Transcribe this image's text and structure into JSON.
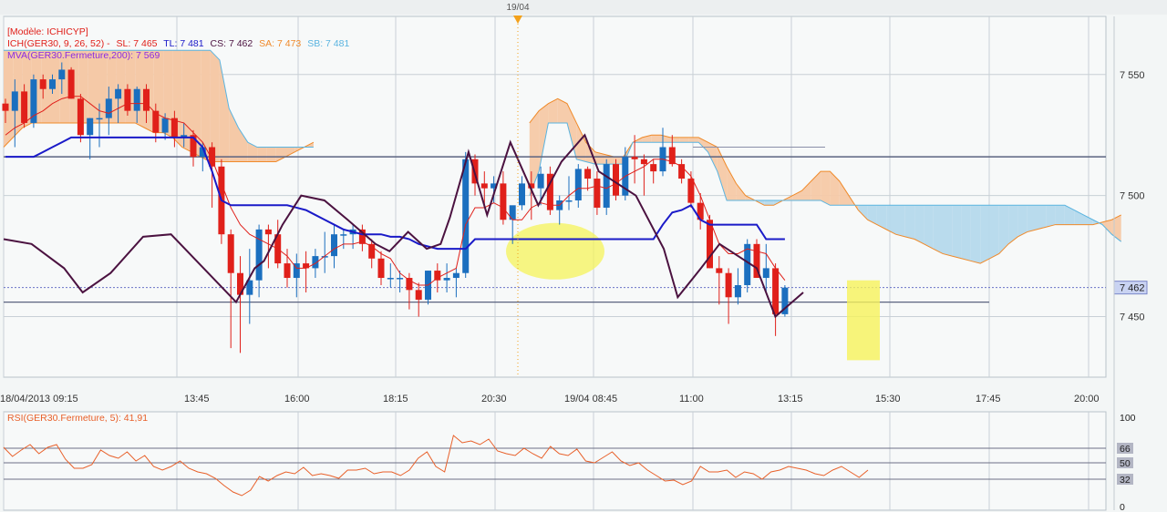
{
  "header": {
    "date_marker": "19/04"
  },
  "legend": {
    "model": "[Modèle: ICHICYP]",
    "ich_label": "ICH(GER30, 9, 26, 52) -",
    "sl": "SL: 7 465",
    "tl": "TL: 7 481",
    "cs": "CS: 7 462",
    "sa": "SA: 7 473",
    "sb": "SB: 7 481",
    "mva": "MVA(GER30.Fermeture,200): 7 569"
  },
  "rsi_legend": "RSI(GER30.Fermeture, 5): 41,91",
  "colors": {
    "bull": "#1b6fbf",
    "bear": "#e0201a",
    "tenkan": "#e0201a",
    "kijun": "#1a1ac8",
    "chikou": "#4b1240",
    "cloud_bull": "#f5c9a7",
    "cloud_bear": "#b5d9ec",
    "spanA": "#f08a2a",
    "spanB": "#5ab4e0",
    "rsi": "#e8602a",
    "grid": "#c8d0d6",
    "highlight": "#f6f35a",
    "price_tag": "#c9d3f2"
  },
  "chart_data": {
    "type": "candlestick",
    "title": "",
    "ylim": [
      7425,
      7574
    ],
    "y_ticks": [
      7450,
      7500,
      7550
    ],
    "y_tick_labels": [
      "7 450",
      "7 500",
      "7 550"
    ],
    "x_tick_labels": [
      "18/04/2013 09:15",
      "13:45",
      "16:00",
      "18:15",
      "20:30",
      "19/04 08:45",
      "11:00",
      "13:15",
      "15:30",
      "17:45",
      "20:00"
    ],
    "current_price": 7462,
    "current_price_label": "7 462",
    "candles": [
      [
        7538,
        7540,
        7530,
        7535
      ],
      [
        7535,
        7548,
        7520,
        7543
      ],
      [
        7543,
        7546,
        7528,
        7530
      ],
      [
        7530,
        7550,
        7528,
        7548
      ],
      [
        7548,
        7550,
        7540,
        7544
      ],
      [
        7544,
        7550,
        7542,
        7548
      ],
      [
        7548,
        7555,
        7542,
        7552
      ],
      [
        7552,
        7553,
        7540,
        7540
      ],
      [
        7540,
        7542,
        7522,
        7525
      ],
      [
        7525,
        7532,
        7515,
        7532
      ],
      [
        7532,
        7538,
        7520,
        7532
      ],
      [
        7532,
        7545,
        7525,
        7540
      ],
      [
        7540,
        7546,
        7530,
        7544
      ],
      [
        7544,
        7546,
        7533,
        7535
      ],
      [
        7535,
        7545,
        7530,
        7544
      ],
      [
        7544,
        7546,
        7530,
        7535
      ],
      [
        7535,
        7538,
        7522,
        7526
      ],
      [
        7526,
        7534,
        7523,
        7532
      ],
      [
        7532,
        7535,
        7520,
        7524
      ],
      [
        7524,
        7530,
        7520,
        7525
      ],
      [
        7525,
        7527,
        7512,
        7516
      ],
      [
        7516,
        7522,
        7510,
        7520
      ],
      [
        7520,
        7522,
        7495,
        7512
      ],
      [
        7512,
        7515,
        7480,
        7484
      ],
      [
        7484,
        7486,
        7437,
        7468
      ],
      [
        7468,
        7475,
        7435,
        7459
      ],
      [
        7459,
        7478,
        7447,
        7465
      ],
      [
        7465,
        7488,
        7458,
        7486
      ],
      [
        7486,
        7488,
        7470,
        7484
      ],
      [
        7484,
        7490,
        7470,
        7472
      ],
      [
        7472,
        7478,
        7462,
        7466
      ],
      [
        7466,
        7476,
        7458,
        7472
      ],
      [
        7472,
        7477,
        7460,
        7470
      ],
      [
        7470,
        7478,
        7466,
        7475
      ],
      [
        7475,
        7485,
        7468,
        7475
      ],
      [
        7475,
        7488,
        7470,
        7484
      ],
      [
        7484,
        7486,
        7478,
        7484
      ],
      [
        7484,
        7488,
        7478,
        7486
      ],
      [
        7486,
        7488,
        7477,
        7480
      ],
      [
        7480,
        7482,
        7470,
        7474
      ],
      [
        7474,
        7477,
        7463,
        7466
      ],
      [
        7466,
        7472,
        7462,
        7466
      ],
      [
        7466,
        7469,
        7460,
        7466
      ],
      [
        7466,
        7468,
        7453,
        7461
      ],
      [
        7461,
        7464,
        7450,
        7457
      ],
      [
        7457,
        7469,
        7455,
        7469
      ],
      [
        7469,
        7472,
        7460,
        7465
      ],
      [
        7465,
        7472,
        7460,
        7466
      ],
      [
        7466,
        7470,
        7458,
        7468
      ],
      [
        7468,
        7518,
        7466,
        7515
      ],
      [
        7515,
        7517,
        7500,
        7505
      ],
      [
        7505,
        7510,
        7495,
        7503
      ],
      [
        7503,
        7508,
        7497,
        7505
      ],
      [
        7505,
        7510,
        7488,
        7490
      ],
      [
        7490,
        7495,
        7480,
        7496
      ],
      [
        7496,
        7508,
        7494,
        7505
      ],
      [
        7505,
        7510,
        7490,
        7503
      ],
      [
        7503,
        7512,
        7496,
        7509
      ],
      [
        7509,
        7512,
        7492,
        7494
      ],
      [
        7494,
        7500,
        7488,
        7498
      ],
      [
        7498,
        7508,
        7494,
        7498
      ],
      [
        7498,
        7513,
        7495,
        7511
      ],
      [
        7511,
        7512,
        7502,
        7507
      ],
      [
        7507,
        7510,
        7492,
        7495
      ],
      [
        7495,
        7515,
        7492,
        7513
      ],
      [
        7513,
        7515,
        7498,
        7500
      ],
      [
        7500,
        7520,
        7498,
        7516
      ],
      [
        7516,
        7525,
        7505,
        7515
      ],
      [
        7515,
        7517,
        7500,
        7513
      ],
      [
        7513,
        7515,
        7505,
        7510
      ],
      [
        7510,
        7528,
        7508,
        7520
      ],
      [
        7520,
        7525,
        7512,
        7513
      ],
      [
        7513,
        7515,
        7505,
        7507
      ],
      [
        7507,
        7510,
        7495,
        7497
      ],
      [
        7497,
        7501,
        7486,
        7490
      ],
      [
        7490,
        7492,
        7470,
        7470
      ],
      [
        7470,
        7475,
        7455,
        7468
      ],
      [
        7468,
        7470,
        7447,
        7458
      ],
      [
        7458,
        7470,
        7455,
        7463
      ],
      [
        7463,
        7482,
        7460,
        7480
      ],
      [
        7480,
        7482,
        7466,
        7466
      ],
      [
        7466,
        7480,
        7460,
        7470
      ],
      [
        7470,
        7472,
        7442,
        7451
      ],
      [
        7451,
        7463,
        7450,
        7462
      ]
    ],
    "tenkan": [
      7525,
      7528,
      7530,
      7533,
      7535,
      7538,
      7540,
      7541,
      7541,
      7538,
      7535,
      7534,
      7536,
      7538,
      7538,
      7538,
      7534,
      7532,
      7531,
      7530,
      7526,
      7522,
      7515,
      7505,
      7495,
      7488,
      7484,
      7482,
      7480,
      7478,
      7475,
      7470,
      7470,
      7472,
      7475,
      7478,
      7480,
      7480,
      7481,
      7479,
      7476,
      7474,
      7468,
      7465,
      7463,
      7463,
      7466,
      7468,
      7470,
      7488,
      7495,
      7495,
      7497,
      7495,
      7490,
      7490,
      7495,
      7497,
      7496,
      7496,
      7500,
      7503,
      7503,
      7504,
      7503,
      7505,
      7508,
      7510,
      7512,
      7515,
      7515,
      7514,
      7512,
      7508,
      7500,
      7490,
      7480,
      7476,
      7476,
      7478,
      7477,
      7476,
      7470,
      7465
    ],
    "kijun": [
      7516,
      7516,
      7516,
      7516,
      7518,
      7520,
      7522,
      7524,
      7524,
      7524,
      7524,
      7524,
      7524,
      7524,
      7524,
      7524,
      7524,
      7524,
      7524,
      7524,
      7524,
      7520,
      7510,
      7498,
      7496,
      7496,
      7496,
      7496,
      7496,
      7496,
      7496,
      7495,
      7494,
      7492,
      7490,
      7488,
      7486,
      7485,
      7484,
      7484,
      7484,
      7483,
      7483,
      7482,
      7480,
      7479,
      7478,
      7478,
      7478,
      7478,
      7482,
      7482,
      7482,
      7482,
      7482,
      7482,
      7482,
      7482,
      7482,
      7482,
      7482,
      7482,
      7482,
      7482,
      7482,
      7482,
      7482,
      7482,
      7482,
      7482,
      7488,
      7493,
      7494,
      7496,
      7490,
      7488,
      7488,
      7488,
      7488,
      7488,
      7488,
      7482,
      7482,
      7482
    ],
    "chikou": [
      [
        0,
        7482
      ],
      [
        6,
        7480
      ],
      [
        13,
        7470
      ],
      [
        17,
        7460
      ],
      [
        23,
        7468
      ],
      [
        30,
        7483
      ],
      [
        36,
        7484
      ],
      [
        42,
        7472
      ],
      [
        48,
        7460
      ],
      [
        50,
        7456
      ],
      [
        54,
        7470
      ],
      [
        56,
        7473
      ],
      [
        60,
        7488
      ],
      [
        64,
        7500
      ],
      [
        69,
        7498
      ],
      [
        74,
        7490
      ],
      [
        80,
        7480
      ],
      [
        83,
        7477
      ],
      [
        87,
        7485
      ],
      [
        91,
        7478
      ],
      [
        94,
        7480
      ],
      [
        96,
        7491
      ],
      [
        100,
        7518
      ],
      [
        104,
        7492
      ],
      [
        109,
        7522
      ],
      [
        115,
        7496
      ],
      [
        120,
        7514
      ],
      [
        125,
        7525
      ],
      [
        128,
        7510
      ],
      [
        136,
        7500
      ],
      [
        142,
        7478
      ],
      [
        145,
        7458
      ],
      [
        150,
        7470
      ],
      [
        154,
        7480
      ],
      [
        162,
        7470
      ],
      [
        166,
        7450
      ],
      [
        172,
        7460
      ]
    ],
    "span_a": [
      7530,
      7535,
      7538,
      7540,
      7538,
      7530,
      7522,
      7518,
      7517,
      7516,
      7516,
      7522,
      7524,
      7525,
      7525,
      7524,
      7524,
      7524,
      7524,
      7522,
      7520,
      7512,
      7505,
      7500,
      7498,
      7496,
      7496,
      7498,
      7500,
      7502,
      7506,
      7510,
      7510,
      7506,
      7500,
      7494,
      7490,
      7488,
      7486,
      7484,
      7483,
      7482,
      7480,
      7478,
      7476,
      7475,
      7474,
      7473,
      7472,
      7474,
      7476,
      7480,
      7483,
      7485,
      7486,
      7487,
      7488,
      7488,
      7488,
      7488,
      7488,
      7489,
      7490,
      7492
    ],
    "span_b": [
      7500,
      7510,
      7530,
      7530,
      7530,
      7515,
      7514,
      7513,
      7513,
      7513,
      7513,
      7522,
      7522,
      7522,
      7522,
      7522,
      7522,
      7522,
      7522,
      7518,
      7510,
      7498,
      7498,
      7498,
      7498,
      7498,
      7498,
      7498,
      7498,
      7498,
      7498,
      7498,
      7496,
      7496,
      7496,
      7496,
      7496,
      7496,
      7496,
      7496,
      7496,
      7496,
      7496,
      7496,
      7496,
      7496,
      7496,
      7496,
      7496,
      7496,
      7496,
      7496,
      7496,
      7496,
      7496,
      7496,
      7496,
      7496,
      7494,
      7492,
      7490,
      7488,
      7484,
      7481
    ],
    "rsi": {
      "legend": "RSI(GER30.Fermeture, 5): 41,91",
      "levels": [
        100,
        66,
        50,
        32,
        0
      ],
      "level_labels": [
        "100",
        "66",
        "50",
        "32",
        "0"
      ],
      "values": [
        67,
        57,
        64,
        70,
        60,
        67,
        70,
        54,
        44,
        44,
        48,
        64,
        58,
        55,
        62,
        52,
        58,
        46,
        42,
        46,
        52,
        44,
        40,
        38,
        33,
        25,
        18,
        14,
        20,
        35,
        30,
        36,
        40,
        38,
        45,
        36,
        38,
        36,
        33,
        42,
        42,
        44,
        38,
        40,
        40,
        36,
        42,
        55,
        62,
        46,
        40,
        80,
        72,
        74,
        70,
        76,
        63,
        60,
        58,
        66,
        60,
        55,
        68,
        60,
        58,
        65,
        52,
        50,
        56,
        62,
        52,
        47,
        50,
        42,
        36,
        30,
        31,
        26,
        30,
        46,
        40,
        40,
        42,
        34,
        40,
        38,
        32,
        40,
        42,
        46,
        44,
        42,
        38,
        36,
        42,
        46,
        40,
        34,
        42
      ]
    }
  }
}
